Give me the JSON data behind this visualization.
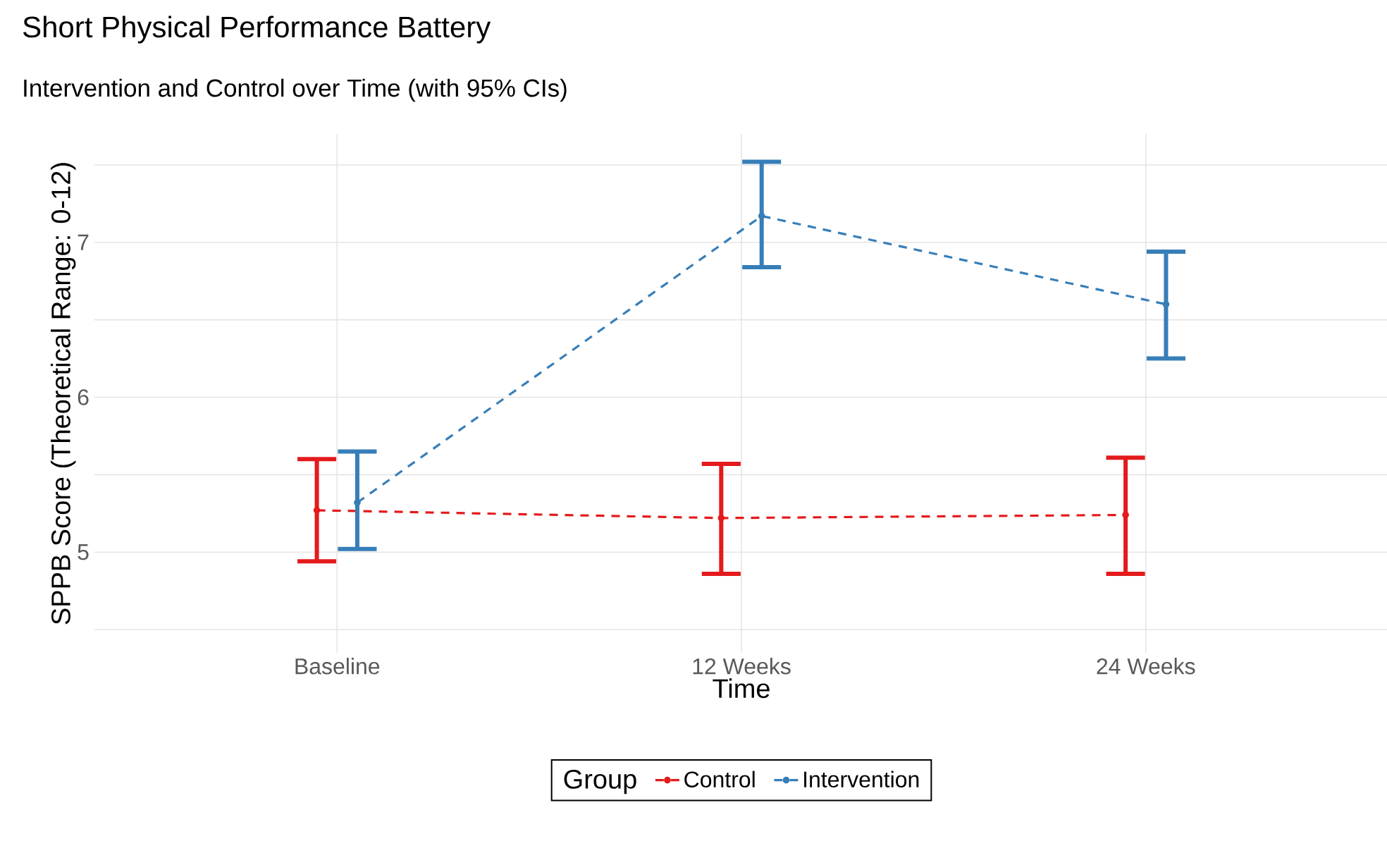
{
  "chart_data": {
    "type": "line",
    "title": "Short Physical Performance Battery",
    "subtitle": "Intervention and Control over Time (with 95% CIs)",
    "xlabel": "Time",
    "ylabel": "SPPB Score (Theoretical Range: 0-12)",
    "legend_title": "Group",
    "categories": [
      "Baseline",
      "12 Weeks",
      "24 Weeks"
    ],
    "series": [
      {
        "name": "Control",
        "color": "#e41a1c",
        "values": [
          5.27,
          5.22,
          5.24
        ],
        "errors": [
          [
            4.94,
            5.6
          ],
          [
            4.86,
            5.57
          ],
          [
            4.86,
            5.61
          ]
        ]
      },
      {
        "name": "Intervention",
        "color": "#377eb8",
        "values": [
          5.32,
          7.17,
          6.6
        ],
        "errors": [
          [
            5.02,
            5.65
          ],
          [
            6.84,
            7.52
          ],
          [
            6.25,
            6.94
          ]
        ]
      }
    ],
    "ylim": [
      4.35,
      7.7
    ],
    "yticks": [
      {
        "value": 4.5,
        "label": null
      },
      5,
      {
        "value": 5.5,
        "label": null
      },
      6,
      {
        "value": 6.5,
        "label": null
      },
      7,
      {
        "value": 7.5,
        "label": null
      }
    ],
    "grid": true,
    "legend": "bottom",
    "marker": "circle",
    "line_style": "dashed"
  }
}
